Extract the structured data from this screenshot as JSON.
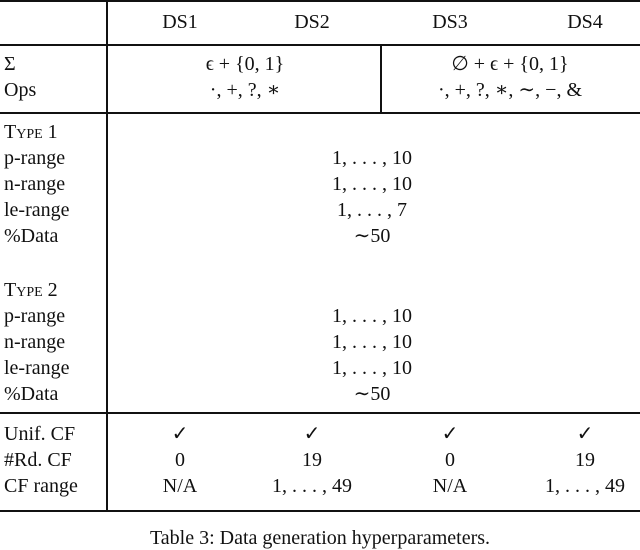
{
  "table": {
    "header": {
      "col0": "",
      "cols": [
        "DS1",
        "DS2",
        "DS3",
        "DS4"
      ]
    },
    "top": {
      "labels": [
        "Σ",
        "Ops"
      ],
      "left_sigma": "ϵ + {0, 1}",
      "left_ops": "·, +, ?, ∗",
      "right_sigma": "∅ + ϵ + {0, 1}",
      "right_ops": "·, +, ?, ∗, ∼, −, &"
    },
    "type1": {
      "title": "Type 1",
      "labels": [
        "p-range",
        "n-range",
        "le-range",
        "%Data"
      ],
      "values": [
        "1, . . . , 10",
        "1, . . . , 10",
        "1, . . . , 7",
        "∼50"
      ]
    },
    "type2": {
      "title": "Type 2",
      "labels": [
        "p-range",
        "n-range",
        "le-range",
        "%Data"
      ],
      "values": [
        "1, . . . , 10",
        "1, . . . , 10",
        "1, . . . , 10",
        "∼50"
      ]
    },
    "bottom": {
      "rows": [
        {
          "label": "Unif. CF",
          "values": [
            "✓",
            "✓",
            "✓",
            "✓"
          ]
        },
        {
          "label": "#Rd. CF",
          "values": [
            "0",
            "19",
            "0",
            "19"
          ]
        },
        {
          "label": "CF range",
          "values": [
            "N/A",
            "1, . . . , 49",
            "N/A",
            "1, . . . , 49"
          ]
        }
      ]
    }
  },
  "caption": "Table 3: Data generation hyperparameters."
}
